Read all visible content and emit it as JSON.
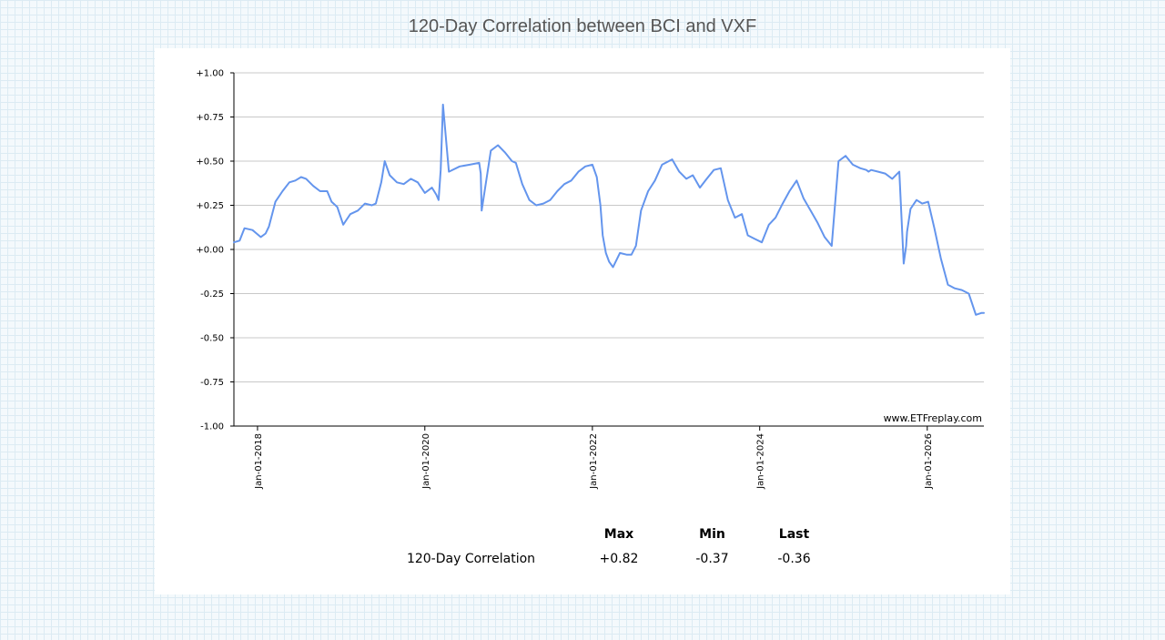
{
  "title": "120-Day Correlation between BCI and VXF",
  "watermark": "www.ETFreplay.com",
  "colors": {
    "line": "#6495ed",
    "grid": "#c8c8c8",
    "axis": "#000000"
  },
  "stats": {
    "headers": [
      "",
      "Max",
      "Min",
      "Last"
    ],
    "row": {
      "label": "120-Day Correlation",
      "max": "+0.82",
      "min": "-0.37",
      "last": "-0.36"
    }
  },
  "chart_data": {
    "type": "line",
    "title": "120-Day Correlation between BCI and VXF",
    "xlabel": "",
    "ylabel": "",
    "ylim": [
      -1,
      1
    ],
    "xlim": [
      "2017-09-20",
      "2026-09-05"
    ],
    "y_ticks": [
      1,
      0.75,
      0.5,
      0.25,
      0,
      -0.25,
      -0.5,
      -0.75,
      -1
    ],
    "y_tick_labels": [
      "+1.00",
      "+0.75",
      "+0.50",
      "+0.25",
      "+0.00",
      "-0.25",
      "-0.50",
      "-0.75",
      "-1.00"
    ],
    "x_ticks": [
      "2018-01-01",
      "2020-01-01",
      "2022-01-01",
      "2024-01-01",
      "2026-01-01"
    ],
    "x_tick_labels": [
      "Jan-01-2018",
      "Jan-01-2020",
      "Jan-01-2022",
      "Jan-01-2024",
      "Jan-01-2026"
    ],
    "grid": true,
    "series": [
      {
        "name": "",
        "x": [
          "2017-09-20",
          "2017-10-15",
          "2017-11-05",
          "2017-12-10",
          "2018-01-15",
          "2018-02-05",
          "2018-02-20",
          "2018-03-20",
          "2018-04-20",
          "2018-05-20",
          "2018-06-15",
          "2018-07-10",
          "2018-08-01",
          "2018-09-01",
          "2018-10-01",
          "2018-11-01",
          "2018-11-20",
          "2018-12-15",
          "2019-01-10",
          "2019-02-10",
          "2019-03-15",
          "2019-04-15",
          "2019-05-15",
          "2019-06-01",
          "2019-06-25",
          "2019-07-10",
          "2019-08-01",
          "2019-09-01",
          "2019-10-01",
          "2019-11-01",
          "2019-12-01",
          "2020-01-01",
          "2020-02-01",
          "2020-02-20",
          "2020-03-01",
          "2020-03-10",
          "2020-03-20",
          "2020-04-15",
          "2020-06-01",
          "2020-07-15",
          "2020-08-25",
          "2020-09-01",
          "2020-09-05",
          "2020-10-15",
          "2020-11-15",
          "2020-12-15",
          "2021-01-15",
          "2021-02-01",
          "2021-03-01",
          "2021-04-01",
          "2021-05-01",
          "2021-06-01",
          "2021-07-01",
          "2021-08-01",
          "2021-09-01",
          "2021-10-01",
          "2021-11-01",
          "2021-12-01",
          "2022-01-01",
          "2022-01-20",
          "2022-02-05",
          "2022-02-15",
          "2022-03-01",
          "2022-03-15",
          "2022-04-01",
          "2022-05-01",
          "2022-06-01",
          "2022-06-20",
          "2022-07-10",
          "2022-08-01",
          "2022-09-01",
          "2022-10-01",
          "2022-11-01",
          "2022-12-15",
          "2023-01-15",
          "2023-02-15",
          "2023-03-15",
          "2023-04-15",
          "2023-05-15",
          "2023-06-15",
          "2023-07-15",
          "2023-08-15",
          "2023-09-15",
          "2023-10-15",
          "2023-11-10",
          "2023-12-10",
          "2024-01-10",
          "2024-02-10",
          "2024-03-10",
          "2024-04-10",
          "2024-05-10",
          "2024-06-10",
          "2024-07-10",
          "2024-08-10",
          "2024-09-10",
          "2024-10-10",
          "2024-11-10",
          "2024-12-10",
          "2025-01-10",
          "2025-02-10",
          "2025-03-15",
          "2025-04-10",
          "2025-04-20",
          "2025-05-01",
          "2025-06-01",
          "2025-07-01",
          "2025-08-01",
          "2025-09-01",
          "2025-09-20",
          "2025-10-01",
          "2025-10-05",
          "2025-10-20",
          "2025-11-15",
          "2025-12-10",
          "2026-01-05",
          "2026-02-01",
          "2026-03-01",
          "2026-04-01",
          "2026-05-01",
          "2026-06-01",
          "2026-07-01",
          "2026-08-01",
          "2026-08-25",
          "2026-09-05"
        ],
        "values": [
          0.04,
          0.05,
          0.12,
          0.11,
          0.07,
          0.09,
          0.13,
          0.27,
          0.33,
          0.38,
          0.39,
          0.41,
          0.4,
          0.36,
          0.33,
          0.33,
          0.27,
          0.24,
          0.14,
          0.2,
          0.22,
          0.26,
          0.25,
          0.26,
          0.38,
          0.5,
          0.42,
          0.38,
          0.37,
          0.4,
          0.38,
          0.32,
          0.35,
          0.31,
          0.28,
          0.45,
          0.82,
          0.44,
          0.47,
          0.48,
          0.49,
          0.43,
          0.22,
          0.56,
          0.59,
          0.55,
          0.5,
          0.49,
          0.37,
          0.28,
          0.25,
          0.26,
          0.28,
          0.33,
          0.37,
          0.39,
          0.44,
          0.47,
          0.48,
          0.41,
          0.25,
          0.08,
          -0.02,
          -0.07,
          -0.1,
          -0.02,
          -0.03,
          -0.03,
          0.02,
          0.22,
          0.33,
          0.39,
          0.48,
          0.51,
          0.44,
          0.4,
          0.42,
          0.35,
          0.4,
          0.45,
          0.46,
          0.28,
          0.18,
          0.2,
          0.08,
          0.06,
          0.04,
          0.14,
          0.18,
          0.26,
          0.33,
          0.39,
          0.29,
          0.22,
          0.15,
          0.07,
          0.02,
          0.5,
          0.53,
          0.48,
          0.46,
          0.45,
          0.44,
          0.45,
          0.44,
          0.43,
          0.4,
          0.44,
          -0.08,
          0.02,
          0.1,
          0.23,
          0.28,
          0.26,
          0.27,
          0.12,
          -0.05,
          -0.2,
          -0.22,
          -0.23,
          -0.25,
          -0.37,
          -0.36,
          -0.36
        ]
      }
    ]
  }
}
